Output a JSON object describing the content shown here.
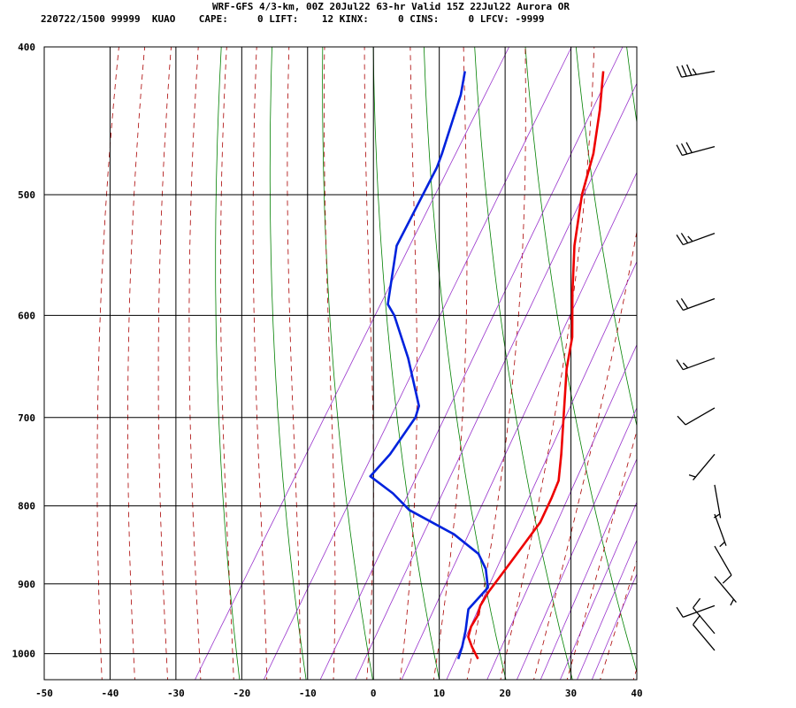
{
  "header": {
    "title": "WRF-GFS 4/3-km, 00Z 20Jul22 63-hr Valid 15Z 22Jul22 Aurora OR",
    "stats": "220722/1500 99999  KUAO    CAPE:     0 LIFT:    12 KINX:     0 CINS:     0 LFCV: -9999"
  },
  "chart_data": {
    "type": "skew-t",
    "title": "WRF-GFS 4/3-km, 00Z 20Jul22 63-hr Valid 15Z 22Jul22 Aurora OR",
    "x_ticks": [
      -50,
      -40,
      -30,
      -20,
      -10,
      0,
      10,
      20,
      30,
      40
    ],
    "x_tick_labels": [
      "-50",
      "-40",
      "-30",
      "-20",
      "-10",
      "0",
      "10",
      "20",
      "30",
      "40"
    ],
    "y_ticks": [
      400,
      500,
      600,
      700,
      800,
      900,
      1000
    ],
    "y_tick_labels": [
      "400",
      "500",
      "600",
      "700",
      "800",
      "900",
      "1000"
    ],
    "xlim": [
      -50,
      40
    ],
    "ylim": [
      1040,
      400
    ],
    "y_scale": "log",
    "grid": true,
    "colors": {
      "temperature": "#ee0000",
      "dewpoint": "#0022dd",
      "dry_adiabat": "#008000",
      "moist_adiabat": "#aa0000",
      "mixing_ratio": "#9933cc",
      "grid": "#000000"
    },
    "series": [
      {
        "role": "temperature",
        "points": [
          {
            "p": 1008,
            "t": 14
          },
          {
            "p": 990,
            "t": 12
          },
          {
            "p": 975,
            "t": 10.5
          },
          {
            "p": 960,
            "t": 10
          },
          {
            "p": 945,
            "t": 10
          },
          {
            "p": 930,
            "t": 9.5
          },
          {
            "p": 910,
            "t": 9.5
          },
          {
            "p": 880,
            "t": 10
          },
          {
            "p": 850,
            "t": 10.5
          },
          {
            "p": 820,
            "t": 11
          },
          {
            "p": 790,
            "t": 10.5
          },
          {
            "p": 770,
            "t": 10
          },
          {
            "p": 740,
            "t": 8
          },
          {
            "p": 700,
            "t": 5
          },
          {
            "p": 650,
            "t": 1
          },
          {
            "p": 620,
            "t": -1
          },
          {
            "p": 580,
            "t": -5
          },
          {
            "p": 540,
            "t": -9
          },
          {
            "p": 500,
            "t": -12.5
          },
          {
            "p": 470,
            "t": -14.5
          },
          {
            "p": 440,
            "t": -17.5
          },
          {
            "p": 415,
            "t": -20.5
          }
        ]
      },
      {
        "role": "dewpoint",
        "points": [
          {
            "p": 1008,
            "t": 11
          },
          {
            "p": 990,
            "t": 10.5
          },
          {
            "p": 965,
            "t": 9.5
          },
          {
            "p": 945,
            "t": 8.5
          },
          {
            "p": 935,
            "t": 8
          },
          {
            "p": 905,
            "t": 9
          },
          {
            "p": 880,
            "t": 7
          },
          {
            "p": 860,
            "t": 4.5
          },
          {
            "p": 835,
            "t": -1
          },
          {
            "p": 805,
            "t": -10
          },
          {
            "p": 785,
            "t": -14
          },
          {
            "p": 765,
            "t": -19
          },
          {
            "p": 740,
            "t": -18
          },
          {
            "p": 700,
            "t": -17.5
          },
          {
            "p": 688,
            "t": -18
          },
          {
            "p": 640,
            "t": -24
          },
          {
            "p": 600,
            "t": -30
          },
          {
            "p": 590,
            "t": -32
          },
          {
            "p": 540,
            "t": -36
          },
          {
            "p": 480,
            "t": -37
          },
          {
            "p": 470,
            "t": -37.5
          },
          {
            "p": 430,
            "t": -40
          },
          {
            "p": 415,
            "t": -41.5
          }
        ]
      }
    ],
    "wind_barbs": [
      {
        "p": 415,
        "speed_kt": 35,
        "dir_deg": 260
      },
      {
        "p": 465,
        "speed_kt": 30,
        "dir_deg": 255
      },
      {
        "p": 530,
        "speed_kt": 25,
        "dir_deg": 250
      },
      {
        "p": 585,
        "speed_kt": 20,
        "dir_deg": 250
      },
      {
        "p": 640,
        "speed_kt": 15,
        "dir_deg": 250
      },
      {
        "p": 690,
        "speed_kt": 10,
        "dir_deg": 240
      },
      {
        "p": 740,
        "speed_kt": 5,
        "dir_deg": 220
      },
      {
        "p": 775,
        "speed_kt": 5,
        "dir_deg": 170
      },
      {
        "p": 810,
        "speed_kt": 5,
        "dir_deg": 160
      },
      {
        "p": 850,
        "speed_kt": 10,
        "dir_deg": 150
      },
      {
        "p": 890,
        "speed_kt": 5,
        "dir_deg": 140
      },
      {
        "p": 930,
        "speed_kt": 10,
        "dir_deg": 250
      },
      {
        "p": 970,
        "speed_kt": 10,
        "dir_deg": 320
      },
      {
        "p": 995,
        "speed_kt": 10,
        "dir_deg": 320
      }
    ]
  }
}
